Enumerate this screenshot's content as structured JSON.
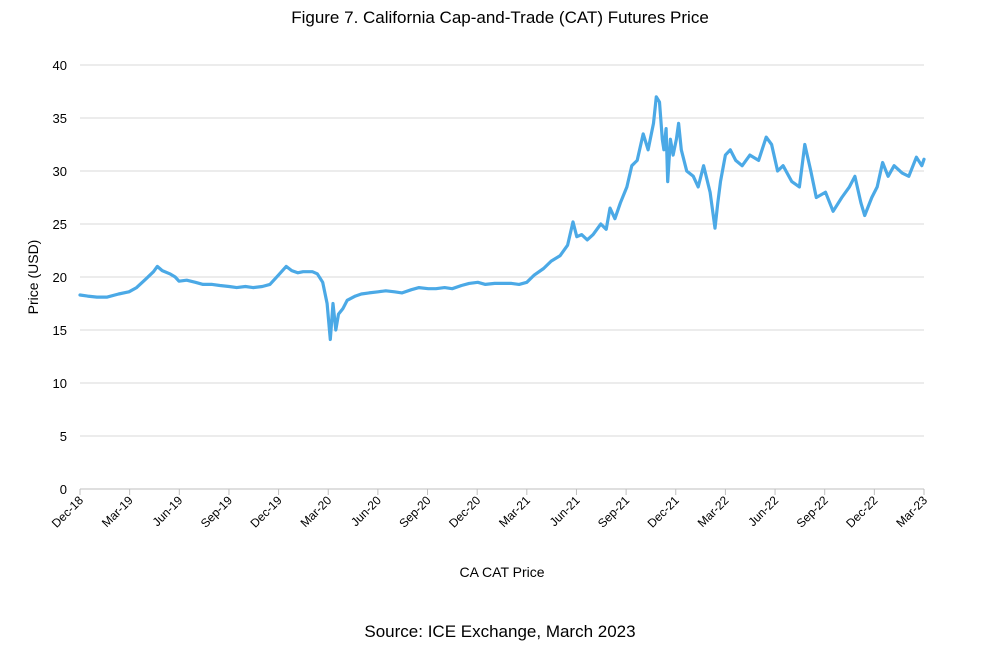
{
  "chart_data": {
    "type": "line",
    "title": "Figure 7. California Cap-and-Trade (CAT) Futures Price",
    "source": "Source: ICE Exchange, March 2023",
    "xlabel": "CA CAT Price",
    "ylabel": "Price (USD)",
    "ylim": [
      0,
      40
    ],
    "yticks": [
      "0",
      "5",
      "10",
      "15",
      "20",
      "25",
      "30",
      "35",
      "40"
    ],
    "xticks": [
      "Dec-18",
      "Mar-19",
      "Jun-19",
      "Sep-19",
      "Dec-19",
      "Mar-20",
      "Jun-20",
      "Sep-20",
      "Dec-20",
      "Mar-21",
      "Jun-21",
      "Sep-21",
      "Dec-21",
      "Mar-22",
      "Jun-22",
      "Sep-22",
      "Dec-22",
      "Mar-23"
    ],
    "grid": true,
    "line_color": "#4BA9E6",
    "series": [
      {
        "x": [
          "2018-12-01",
          "2018-12-15",
          "2019-01-01",
          "2019-01-20",
          "2019-02-10",
          "2019-03-01",
          "2019-03-15",
          "2019-04-01",
          "2019-04-15",
          "2019-04-22",
          "2019-05-01",
          "2019-05-15",
          "2019-05-25",
          "2019-06-01",
          "2019-06-15",
          "2019-07-01",
          "2019-07-15",
          "2019-08-01",
          "2019-08-15",
          "2019-09-01",
          "2019-09-15",
          "2019-10-01",
          "2019-10-15",
          "2019-11-01",
          "2019-11-15",
          "2019-12-01",
          "2019-12-15",
          "2019-12-25",
          "2020-01-05",
          "2020-01-15",
          "2020-02-01",
          "2020-02-10",
          "2020-02-20",
          "2020-02-28",
          "2020-03-05",
          "2020-03-10",
          "2020-03-15",
          "2020-03-20",
          "2020-03-28",
          "2020-04-05",
          "2020-04-20",
          "2020-05-01",
          "2020-05-15",
          "2020-06-01",
          "2020-06-15",
          "2020-07-01",
          "2020-07-15",
          "2020-08-01",
          "2020-08-15",
          "2020-09-01",
          "2020-09-15",
          "2020-10-01",
          "2020-10-15",
          "2020-11-01",
          "2020-11-15",
          "2020-12-01",
          "2020-12-15",
          "2021-01-01",
          "2021-01-15",
          "2021-02-01",
          "2021-02-15",
          "2021-03-01",
          "2021-03-15",
          "2021-04-01",
          "2021-04-15",
          "2021-05-01",
          "2021-05-15",
          "2021-05-25",
          "2021-06-01",
          "2021-06-10",
          "2021-06-20",
          "2021-07-01",
          "2021-07-15",
          "2021-07-25",
          "2021-08-01",
          "2021-08-10",
          "2021-08-20",
          "2021-09-01",
          "2021-09-10",
          "2021-09-20",
          "2021-10-01",
          "2021-10-10",
          "2021-10-20",
          "2021-10-25",
          "2021-10-31",
          "2021-11-05",
          "2021-11-08",
          "2021-11-12",
          "2021-11-15",
          "2021-11-20",
          "2021-11-25",
          "2021-12-01",
          "2021-12-05",
          "2021-12-10",
          "2021-12-20",
          "2022-01-01",
          "2022-01-10",
          "2022-01-20",
          "2022-02-01",
          "2022-02-10",
          "2022-02-15",
          "2022-02-20",
          "2022-03-01",
          "2022-03-10",
          "2022-03-20",
          "2022-04-01",
          "2022-04-15",
          "2022-05-01",
          "2022-05-15",
          "2022-05-25",
          "2022-06-05",
          "2022-06-15",
          "2022-07-01",
          "2022-07-15",
          "2022-07-25",
          "2022-08-05",
          "2022-08-15",
          "2022-09-01",
          "2022-09-15",
          "2022-10-01",
          "2022-10-15",
          "2022-10-25",
          "2022-11-05",
          "2022-11-12",
          "2022-11-25",
          "2022-12-05",
          "2022-12-15",
          "2022-12-25",
          "2023-01-05",
          "2023-01-20",
          "2023-02-01",
          "2023-02-15",
          "2023-02-25",
          "2023-03-01"
        ],
        "values": [
          18.3,
          18.2,
          18.1,
          18.1,
          18.4,
          18.6,
          19.0,
          19.8,
          20.5,
          21.0,
          20.6,
          20.3,
          20.0,
          19.6,
          19.7,
          19.5,
          19.3,
          19.3,
          19.2,
          19.1,
          19.0,
          19.1,
          19.0,
          19.1,
          19.3,
          20.2,
          21.0,
          20.6,
          20.4,
          20.5,
          20.5,
          20.3,
          19.5,
          17.5,
          14.1,
          17.5,
          15.0,
          16.5,
          17.0,
          17.8,
          18.2,
          18.4,
          18.5,
          18.6,
          18.7,
          18.6,
          18.5,
          18.8,
          19.0,
          18.9,
          18.9,
          19.0,
          18.9,
          19.2,
          19.4,
          19.5,
          19.3,
          19.4,
          19.4,
          19.4,
          19.3,
          19.5,
          20.2,
          20.8,
          21.5,
          22.0,
          23.0,
          25.2,
          23.8,
          24.0,
          23.5,
          24.0,
          25.0,
          24.5,
          26.5,
          25.5,
          27.0,
          28.5,
          30.5,
          31.0,
          33.5,
          32.0,
          34.5,
          37.0,
          36.5,
          33.0,
          32.0,
          34.0,
          29.0,
          33.0,
          31.5,
          33.0,
          34.5,
          32.0,
          30.0,
          29.5,
          28.5,
          30.5,
          28.0,
          24.6,
          27.0,
          29.0,
          31.5,
          32.0,
          31.0,
          30.5,
          31.5,
          31.0,
          33.2,
          32.5,
          30.0,
          30.5,
          29.0,
          28.5,
          32.5,
          30.0,
          27.5,
          28.0,
          26.2,
          27.5,
          28.5,
          29.5,
          27.0,
          25.8,
          27.5,
          28.5,
          30.8,
          29.5,
          30.5,
          29.8,
          29.5,
          31.3,
          30.5,
          31.1
        ]
      }
    ]
  }
}
